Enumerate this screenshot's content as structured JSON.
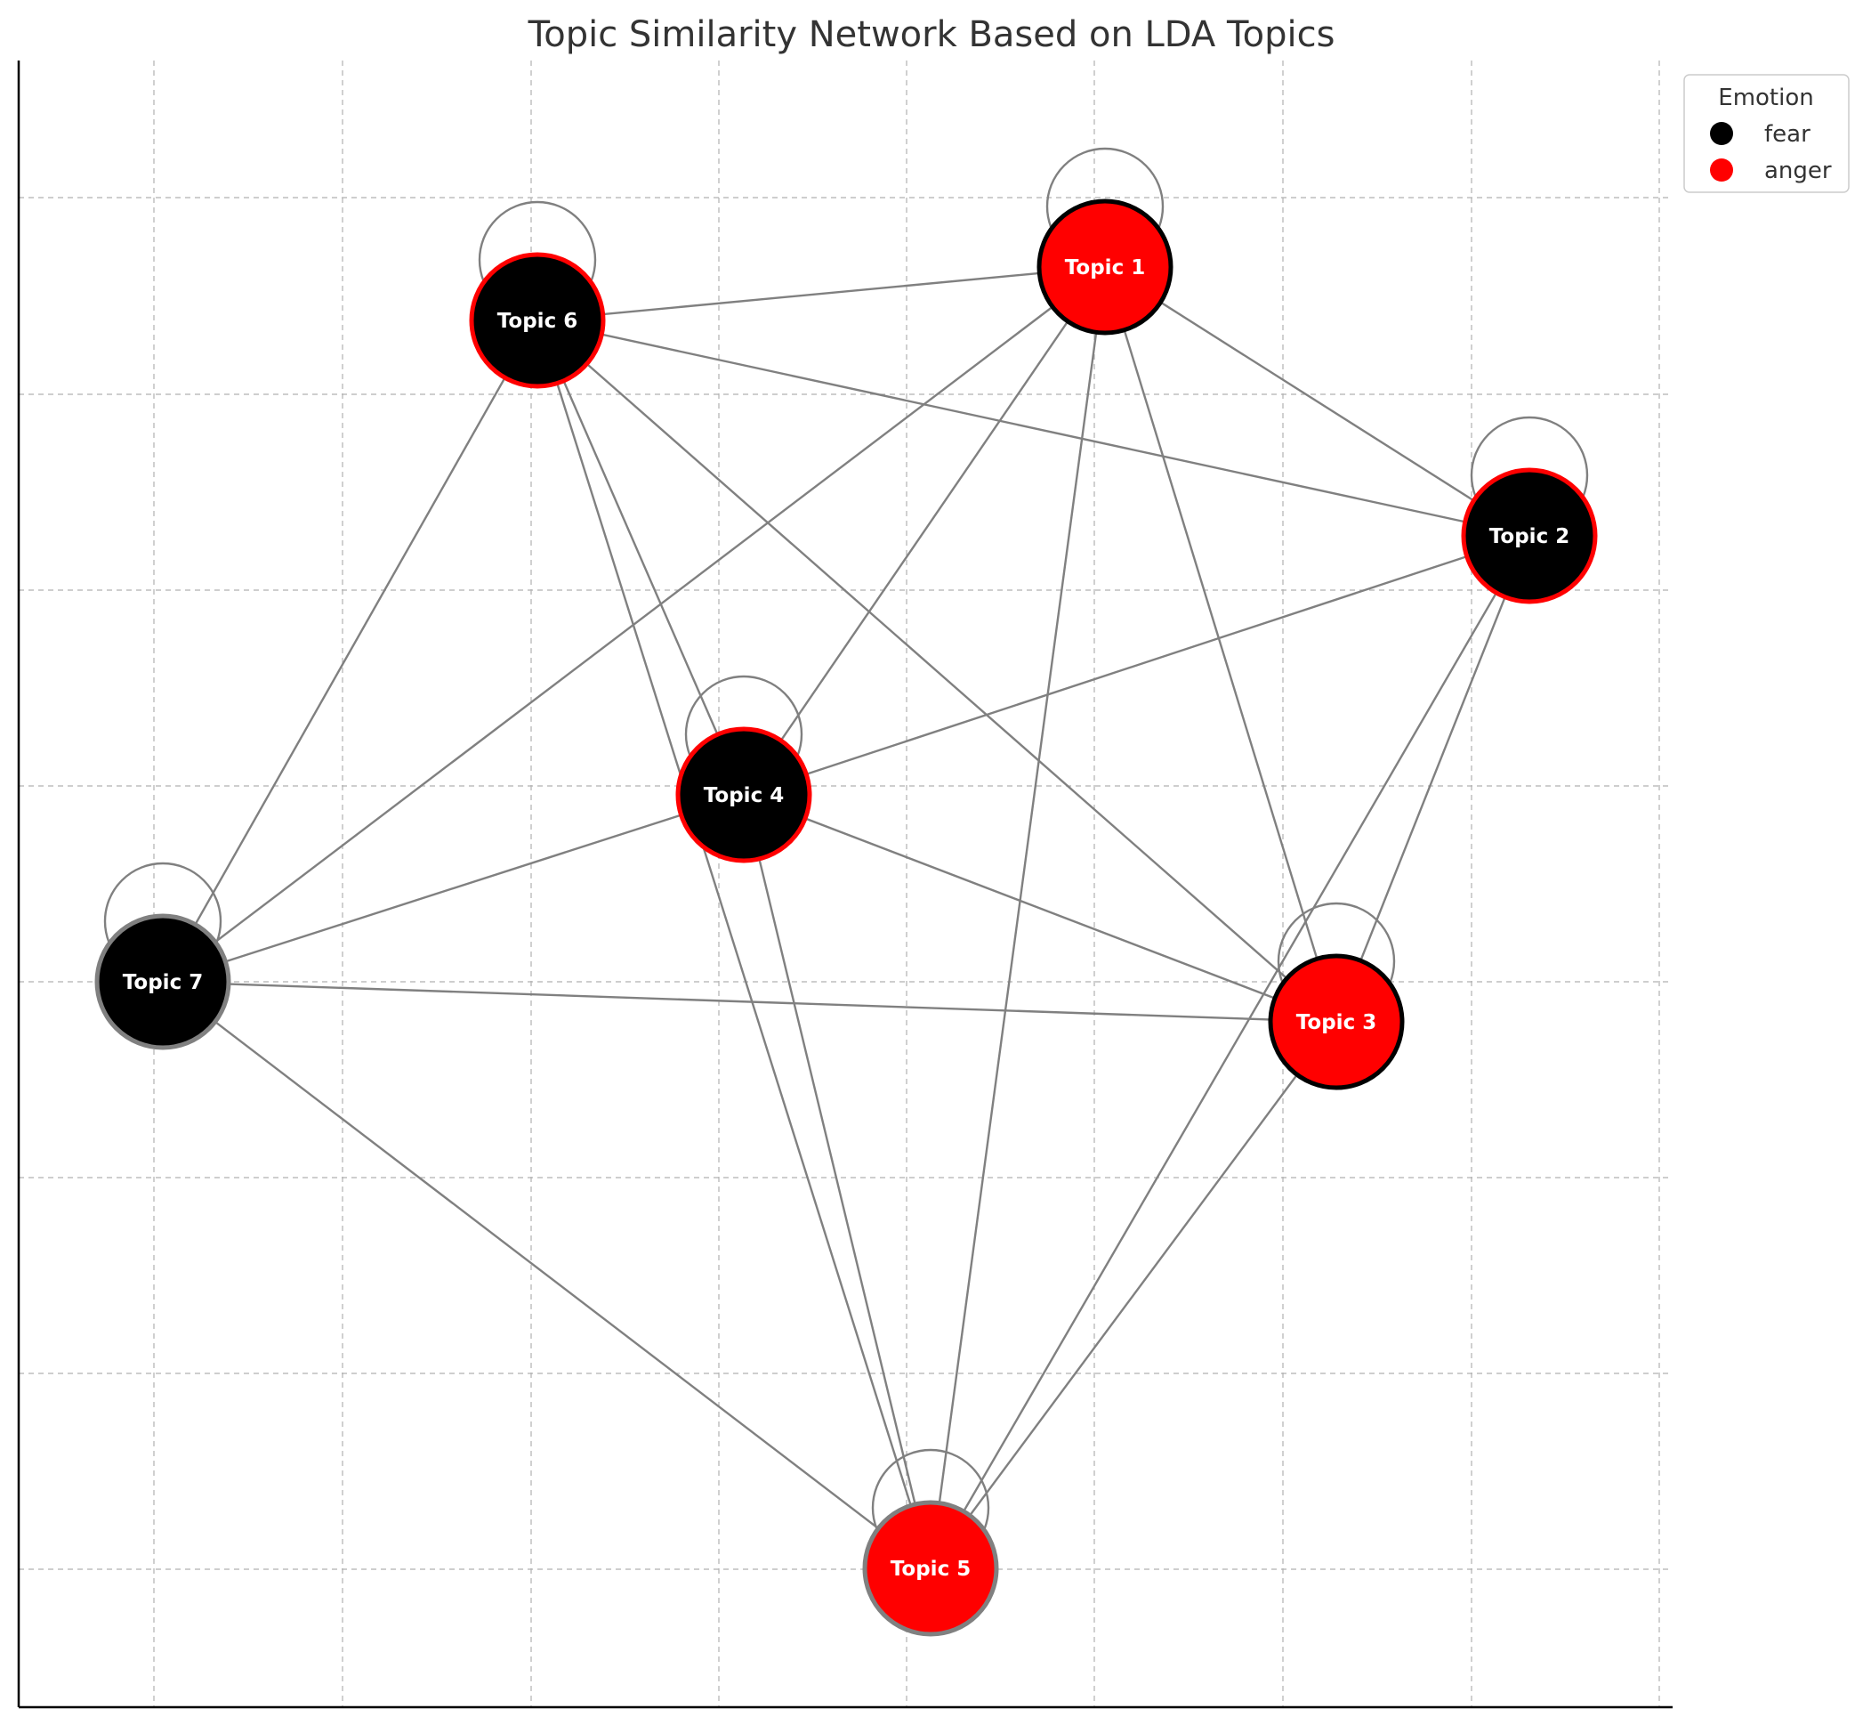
{
  "chart_data": {
    "type": "network",
    "title": "Topic Similarity Network Based on LDA Topics",
    "grid": true,
    "legend": {
      "title": "Emotion",
      "placement": "top-right",
      "entries": [
        {
          "label": "fear",
          "color": "#000000"
        },
        {
          "label": "anger",
          "color": "#ff0000"
        }
      ]
    },
    "nodes": [
      {
        "id": "1",
        "label": "Topic 1",
        "emotion": "anger",
        "fill": "#ff0000",
        "border": "#000000",
        "self_loop": true
      },
      {
        "id": "2",
        "label": "Topic 2",
        "emotion": "fear",
        "fill": "#000000",
        "border": "#ff0000",
        "self_loop": true
      },
      {
        "id": "3",
        "label": "Topic 3",
        "emotion": "anger",
        "fill": "#ff0000",
        "border": "#000000",
        "self_loop": true
      },
      {
        "id": "4",
        "label": "Topic 4",
        "emotion": "fear",
        "fill": "#000000",
        "border": "#ff0000",
        "self_loop": true
      },
      {
        "id": "5",
        "label": "Topic 5",
        "emotion": "anger",
        "fill": "#ff0000",
        "border": "#808080",
        "self_loop": true
      },
      {
        "id": "6",
        "label": "Topic 6",
        "emotion": "fear",
        "fill": "#000000",
        "border": "#ff0000",
        "self_loop": true
      },
      {
        "id": "7",
        "label": "Topic 7",
        "emotion": "fear",
        "fill": "#000000",
        "border": "#808080",
        "self_loop": true
      }
    ],
    "edges": [
      [
        "6",
        "1"
      ],
      [
        "6",
        "2"
      ],
      [
        "6",
        "3"
      ],
      [
        "6",
        "4"
      ],
      [
        "6",
        "5"
      ],
      [
        "6",
        "7"
      ],
      [
        "1",
        "2"
      ],
      [
        "1",
        "3"
      ],
      [
        "1",
        "4"
      ],
      [
        "1",
        "5"
      ],
      [
        "1",
        "7"
      ],
      [
        "2",
        "4"
      ],
      [
        "2",
        "3"
      ],
      [
        "2",
        "5"
      ],
      [
        "4",
        "7"
      ],
      [
        "4",
        "3"
      ],
      [
        "4",
        "5"
      ],
      [
        "7",
        "3"
      ],
      [
        "7",
        "5"
      ],
      [
        "3",
        "5"
      ]
    ]
  }
}
